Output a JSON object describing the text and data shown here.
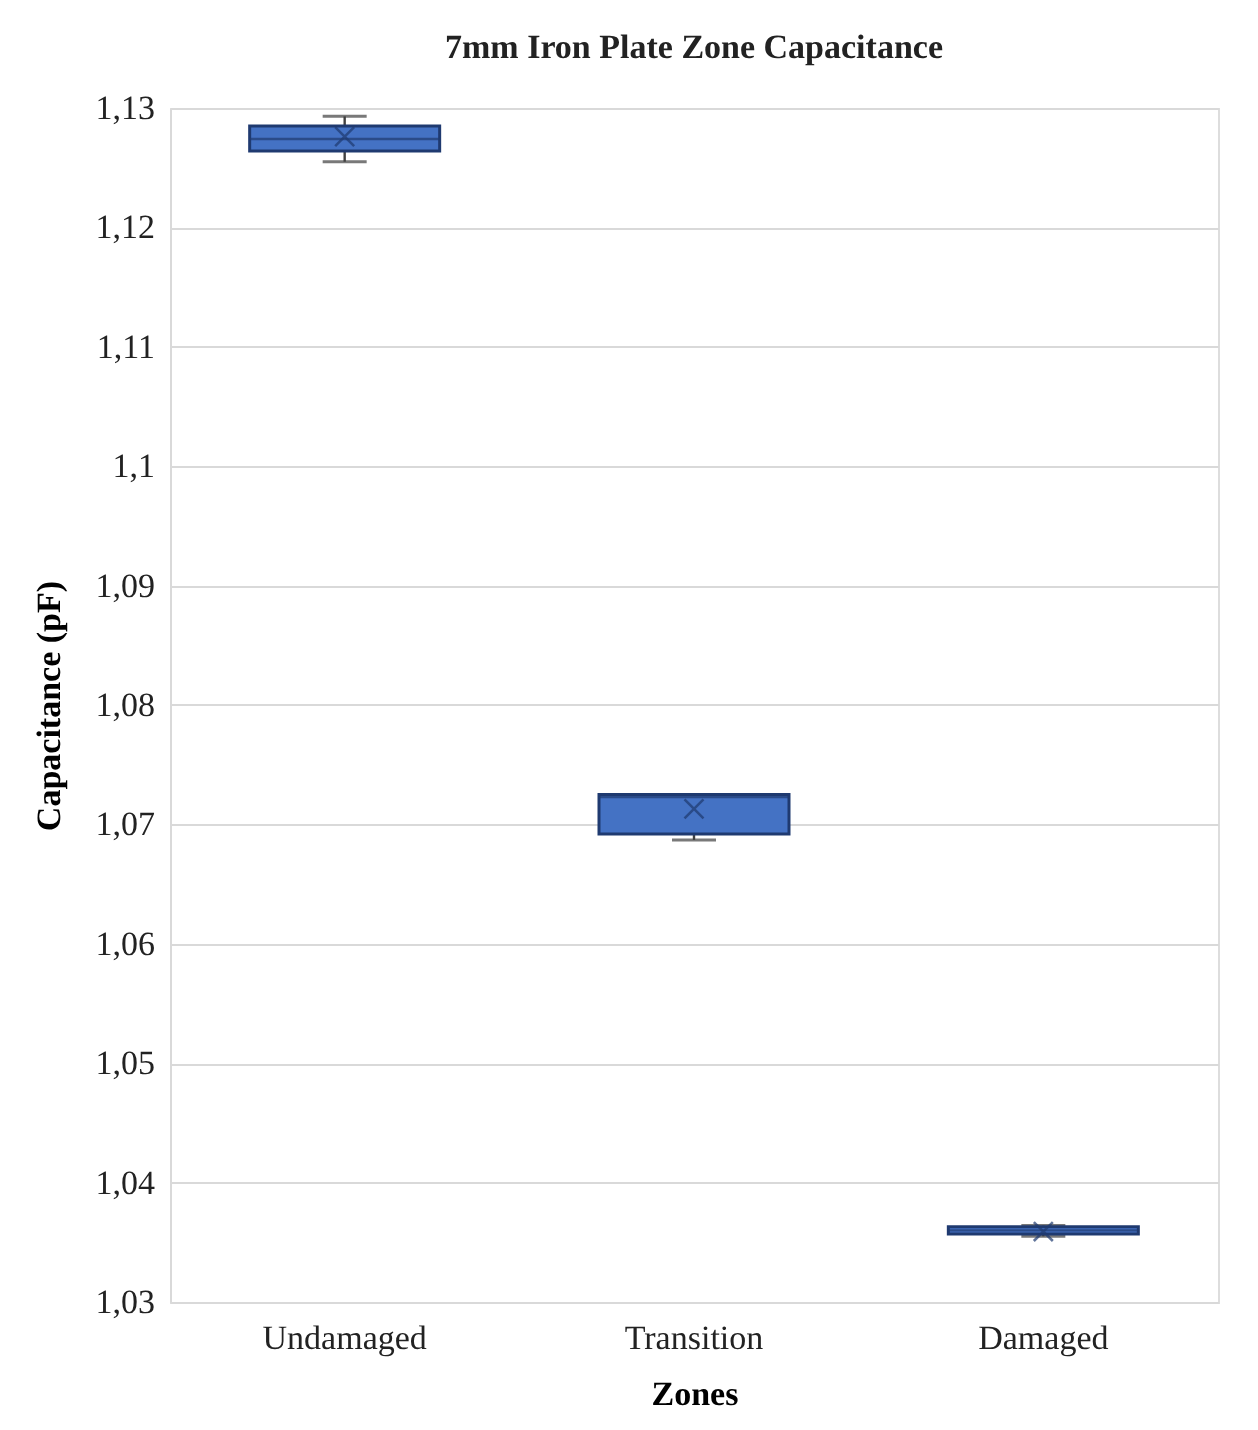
{
  "chart_data": {
    "type": "box",
    "title": "7mm Iron Plate Zone Capacitance",
    "xlabel": "Zones",
    "ylabel": "Capacitance (pF)",
    "categories": [
      "Undamaged",
      "Transition",
      "Damaged"
    ],
    "boxes": [
      {
        "low": 1.1255,
        "q1": 1.1264,
        "median": 1.1274,
        "q3": 1.1285,
        "high": 1.1293,
        "mean": 1.1276
      },
      {
        "low": 1.0687,
        "q1": 1.0692,
        "median": 1.0723,
        "q3": 1.0725,
        "high": 1.0725,
        "mean": 1.0713
      },
      {
        "low": 1.0355,
        "q1": 1.0357,
        "median": 1.036,
        "q3": 1.0363,
        "high": 1.0364,
        "mean": 1.0359
      }
    ],
    "color": "#4472c4",
    "ylim": [
      1.03,
      1.13
    ],
    "yticks": [
      {
        "value": 1.03,
        "label": "1,03"
      },
      {
        "value": 1.04,
        "label": "1,04"
      },
      {
        "value": 1.05,
        "label": "1,05"
      },
      {
        "value": 1.06,
        "label": "1,06"
      },
      {
        "value": 1.07,
        "label": "1,07"
      },
      {
        "value": 1.08,
        "label": "1,08"
      },
      {
        "value": 1.09,
        "label": "1,09"
      },
      {
        "value": 1.1,
        "label": "1,1"
      },
      {
        "value": 1.11,
        "label": "1,11"
      },
      {
        "value": 1.12,
        "label": "1,12"
      },
      {
        "value": 1.13,
        "label": "1,13"
      }
    ],
    "grid": "y"
  }
}
